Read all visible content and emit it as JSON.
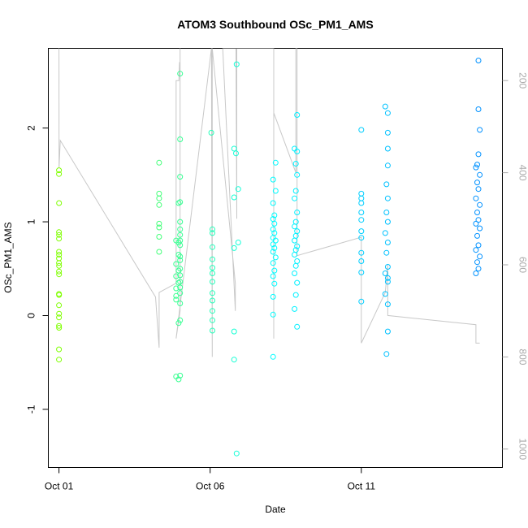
{
  "chart_data": {
    "type": "scatter",
    "title": "ATOM3 Southbound OSc_PM1_AMS",
    "xlabel": "Date",
    "ylabel": "OSc_PM1_AMS",
    "xlim": [
      "2016-09-30T15:33",
      "2016-10-15T16:00"
    ],
    "ylim": [
      -1.62,
      2.85
    ],
    "x_ticks": [
      {
        "date": "2016-10-01",
        "label": "Oct 01"
      },
      {
        "date": "2016-10-06",
        "label": "Oct 06"
      },
      {
        "date": "2016-10-11",
        "label": "Oct 11"
      }
    ],
    "y_ticks": [
      -1,
      0,
      1,
      2
    ],
    "right_axis": {
      "label": "",
      "ticks": [
        200,
        400,
        600,
        800,
        1000
      ],
      "lim": [
        130,
        1040
      ],
      "reversed": true,
      "color": "#aaaaaa"
    },
    "marker": "open-circle",
    "color_map": [
      "#7fff00",
      "#00ffff",
      "#0090ff"
    ],
    "secondary_line_color": "#c8c8c8",
    "grid": false,
    "legend": "none",
    "points": [
      {
        "x": "2016-10-01T00:00",
        "y": 1.55
      },
      {
        "x": "2016-10-01T00:00",
        "y": 1.51
      },
      {
        "x": "2016-10-01T00:05",
        "y": 1.2
      },
      {
        "x": "2016-10-01T00:00",
        "y": 0.89
      },
      {
        "x": "2016-10-01T00:05",
        "y": 0.86
      },
      {
        "x": "2016-10-01T00:00",
        "y": 0.82
      },
      {
        "x": "2016-10-01T00:00",
        "y": 0.68
      },
      {
        "x": "2016-10-01T00:05",
        "y": 0.65
      },
      {
        "x": "2016-10-01T00:00",
        "y": 0.61
      },
      {
        "x": "2016-10-01T00:00",
        "y": 0.56
      },
      {
        "x": "2016-10-01T00:05",
        "y": 0.53
      },
      {
        "x": "2016-10-01T00:00",
        "y": 0.47
      },
      {
        "x": "2016-10-01T00:05",
        "y": 0.44
      },
      {
        "x": "2016-10-01T00:00",
        "y": 0.23
      },
      {
        "x": "2016-10-01T00:05",
        "y": 0.22
      },
      {
        "x": "2016-10-01T00:00",
        "y": 0.11
      },
      {
        "x": "2016-10-01T00:05",
        "y": 0.02
      },
      {
        "x": "2016-10-01T00:00",
        "y": -0.02
      },
      {
        "x": "2016-10-01T00:00",
        "y": -0.11
      },
      {
        "x": "2016-10-01T00:05",
        "y": -0.13
      },
      {
        "x": "2016-10-01T00:00",
        "y": -0.36
      },
      {
        "x": "2016-10-01T00:00",
        "y": -0.47
      },
      {
        "x": "2016-10-04T07:30",
        "y": 1.63
      },
      {
        "x": "2016-10-04T07:30",
        "y": 1.3
      },
      {
        "x": "2016-10-04T07:30",
        "y": 1.25
      },
      {
        "x": "2016-10-04T07:30",
        "y": 1.18
      },
      {
        "x": "2016-10-04T07:30",
        "y": 0.98
      },
      {
        "x": "2016-10-04T07:30",
        "y": 0.94
      },
      {
        "x": "2016-10-04T07:30",
        "y": 0.84
      },
      {
        "x": "2016-10-04T07:30",
        "y": 0.68
      },
      {
        "x": "2016-10-04T21:00",
        "y": 0.8
      },
      {
        "x": "2016-10-04T21:00",
        "y": 0.55
      },
      {
        "x": "2016-10-04T21:00",
        "y": 0.42
      },
      {
        "x": "2016-10-04T21:00",
        "y": 0.29
      },
      {
        "x": "2016-10-04T21:00",
        "y": 0.21
      },
      {
        "x": "2016-10-04T21:00",
        "y": 0.17
      },
      {
        "x": "2016-10-04T21:00",
        "y": -0.65
      },
      {
        "x": "2016-10-05T00:10",
        "y": 2.58
      },
      {
        "x": "2016-10-05T00:10",
        "y": 1.88
      },
      {
        "x": "2016-10-05T00:10",
        "y": 1.48
      },
      {
        "x": "2016-10-05T00:10",
        "y": 1.21
      },
      {
        "x": "2016-10-05T00:10",
        "y": 1.0
      },
      {
        "x": "2016-10-05T00:10",
        "y": 0.92
      },
      {
        "x": "2016-10-05T00:10",
        "y": 0.86
      },
      {
        "x": "2016-10-05T00:10",
        "y": 0.8
      },
      {
        "x": "2016-10-05T00:10",
        "y": 0.75
      },
      {
        "x": "2016-10-05T00:10",
        "y": 0.63
      },
      {
        "x": "2016-10-05T00:10",
        "y": 0.59
      },
      {
        "x": "2016-10-05T00:10",
        "y": 0.5
      },
      {
        "x": "2016-10-05T00:10",
        "y": 0.43
      },
      {
        "x": "2016-10-05T00:10",
        "y": 0.36
      },
      {
        "x": "2016-10-05T00:10",
        "y": 0.3
      },
      {
        "x": "2016-10-05T00:10",
        "y": 0.24
      },
      {
        "x": "2016-10-05T00:10",
        "y": 0.13
      },
      {
        "x": "2016-10-05T00:10",
        "y": -0.05
      },
      {
        "x": "2016-10-05T00:10",
        "y": -0.64
      },
      {
        "x": "2016-10-04T23:00",
        "y": 1.2
      },
      {
        "x": "2016-10-04T23:00",
        "y": 0.78
      },
      {
        "x": "2016-10-04T23:00",
        "y": 0.65
      },
      {
        "x": "2016-10-04T23:00",
        "y": 0.48
      },
      {
        "x": "2016-10-04T23:00",
        "y": 0.35
      },
      {
        "x": "2016-10-04T23:00",
        "y": -0.68
      },
      {
        "x": "2016-10-04T23:00",
        "y": -0.08
      },
      {
        "x": "2016-10-06T00:55",
        "y": 1.95
      },
      {
        "x": "2016-10-06T01:50",
        "y": 0.92
      },
      {
        "x": "2016-10-06T01:50",
        "y": 0.88
      },
      {
        "x": "2016-10-06T01:50",
        "y": 0.73
      },
      {
        "x": "2016-10-06T01:50",
        "y": 0.6
      },
      {
        "x": "2016-10-06T01:50",
        "y": 0.51
      },
      {
        "x": "2016-10-06T01:50",
        "y": 0.45
      },
      {
        "x": "2016-10-06T01:50",
        "y": 0.36
      },
      {
        "x": "2016-10-06T01:50",
        "y": 0.24
      },
      {
        "x": "2016-10-06T01:50",
        "y": 0.16
      },
      {
        "x": "2016-10-06T01:50",
        "y": 0.05
      },
      {
        "x": "2016-10-06T01:50",
        "y": -0.05
      },
      {
        "x": "2016-10-06T01:50",
        "y": -0.16
      },
      {
        "x": "2016-10-06T21:00",
        "y": 2.68
      },
      {
        "x": "2016-10-06T19:00",
        "y": 1.78
      },
      {
        "x": "2016-10-06T20:30",
        "y": 1.73
      },
      {
        "x": "2016-10-06T22:20",
        "y": 1.35
      },
      {
        "x": "2016-10-06T19:00",
        "y": 1.26
      },
      {
        "x": "2016-10-06T22:20",
        "y": 0.78
      },
      {
        "x": "2016-10-06T19:00",
        "y": 0.72
      },
      {
        "x": "2016-10-06T19:00",
        "y": -0.17
      },
      {
        "x": "2016-10-06T19:00",
        "y": -0.47
      },
      {
        "x": "2016-10-06T21:00",
        "y": -1.47
      },
      {
        "x": "2016-10-08T04:00",
        "y": 1.63
      },
      {
        "x": "2016-10-08T02:00",
        "y": 1.45
      },
      {
        "x": "2016-10-08T04:00",
        "y": 1.33
      },
      {
        "x": "2016-10-08T02:00",
        "y": 1.2
      },
      {
        "x": "2016-10-08T03:00",
        "y": 1.07
      },
      {
        "x": "2016-10-08T02:00",
        "y": 1.03
      },
      {
        "x": "2016-10-08T03:00",
        "y": 0.98
      },
      {
        "x": "2016-10-08T02:00",
        "y": 0.92
      },
      {
        "x": "2016-10-08T03:00",
        "y": 0.88
      },
      {
        "x": "2016-10-08T02:00",
        "y": 0.83
      },
      {
        "x": "2016-10-08T04:00",
        "y": 0.8
      },
      {
        "x": "2016-10-08T02:00",
        "y": 0.76
      },
      {
        "x": "2016-10-08T03:00",
        "y": 0.72
      },
      {
        "x": "2016-10-08T02:00",
        "y": 0.68
      },
      {
        "x": "2016-10-08T04:00",
        "y": 0.62
      },
      {
        "x": "2016-10-08T02:00",
        "y": 0.56
      },
      {
        "x": "2016-10-08T03:00",
        "y": 0.48
      },
      {
        "x": "2016-10-08T02:00",
        "y": 0.42
      },
      {
        "x": "2016-10-08T03:00",
        "y": 0.34
      },
      {
        "x": "2016-10-08T02:00",
        "y": 0.2
      },
      {
        "x": "2016-10-08T02:00",
        "y": 0.01
      },
      {
        "x": "2016-10-08T02:00",
        "y": -0.44
      },
      {
        "x": "2016-10-08T21:00",
        "y": 2.14
      },
      {
        "x": "2016-10-08T19:00",
        "y": 1.78
      },
      {
        "x": "2016-10-08T21:00",
        "y": 1.75
      },
      {
        "x": "2016-10-08T20:00",
        "y": 1.62
      },
      {
        "x": "2016-10-08T21:00",
        "y": 1.5
      },
      {
        "x": "2016-10-08T20:00",
        "y": 1.33
      },
      {
        "x": "2016-10-08T19:00",
        "y": 1.25
      },
      {
        "x": "2016-10-08T21:00",
        "y": 1.1
      },
      {
        "x": "2016-10-08T20:00",
        "y": 1.0
      },
      {
        "x": "2016-10-08T19:00",
        "y": 0.95
      },
      {
        "x": "2016-10-08T21:00",
        "y": 0.9
      },
      {
        "x": "2016-10-08T20:00",
        "y": 0.85
      },
      {
        "x": "2016-10-08T19:00",
        "y": 0.8
      },
      {
        "x": "2016-10-08T21:00",
        "y": 0.74
      },
      {
        "x": "2016-10-08T20:00",
        "y": 0.7
      },
      {
        "x": "2016-10-08T19:00",
        "y": 0.65
      },
      {
        "x": "2016-10-08T21:00",
        "y": 0.58
      },
      {
        "x": "2016-10-08T20:00",
        "y": 0.53
      },
      {
        "x": "2016-10-08T19:00",
        "y": 0.45
      },
      {
        "x": "2016-10-08T21:00",
        "y": 0.35
      },
      {
        "x": "2016-10-08T20:00",
        "y": 0.22
      },
      {
        "x": "2016-10-08T19:00",
        "y": 0.07
      },
      {
        "x": "2016-10-08T21:00",
        "y": -0.12
      },
      {
        "x": "2016-10-11T00:00",
        "y": 1.98
      },
      {
        "x": "2016-10-11T00:00",
        "y": 1.3
      },
      {
        "x": "2016-10-11T00:00",
        "y": 1.25
      },
      {
        "x": "2016-10-11T00:00",
        "y": 1.2
      },
      {
        "x": "2016-10-11T00:00",
        "y": 1.1
      },
      {
        "x": "2016-10-11T00:00",
        "y": 1.02
      },
      {
        "x": "2016-10-11T00:00",
        "y": 0.9
      },
      {
        "x": "2016-10-11T00:00",
        "y": 0.83
      },
      {
        "x": "2016-10-11T00:00",
        "y": 0.67
      },
      {
        "x": "2016-10-11T00:00",
        "y": 0.58
      },
      {
        "x": "2016-10-11T00:00",
        "y": 0.46
      },
      {
        "x": "2016-10-11T00:00",
        "y": 0.15
      },
      {
        "x": "2016-10-11T19:00",
        "y": 2.23
      },
      {
        "x": "2016-10-11T21:00",
        "y": 2.16
      },
      {
        "x": "2016-10-11T21:00",
        "y": 1.95
      },
      {
        "x": "2016-10-11T21:00",
        "y": 1.78
      },
      {
        "x": "2016-10-11T21:00",
        "y": 1.6
      },
      {
        "x": "2016-10-11T20:00",
        "y": 1.4
      },
      {
        "x": "2016-10-11T21:00",
        "y": 1.25
      },
      {
        "x": "2016-10-11T20:00",
        "y": 1.1
      },
      {
        "x": "2016-10-11T21:00",
        "y": 1.0
      },
      {
        "x": "2016-10-11T19:00",
        "y": 0.88
      },
      {
        "x": "2016-10-11T21:00",
        "y": 0.78
      },
      {
        "x": "2016-10-11T20:00",
        "y": 0.67
      },
      {
        "x": "2016-10-11T21:00",
        "y": 0.52
      },
      {
        "x": "2016-10-11T19:00",
        "y": 0.45
      },
      {
        "x": "2016-10-11T21:00",
        "y": 0.4
      },
      {
        "x": "2016-10-11T21:00",
        "y": 0.36
      },
      {
        "x": "2016-10-11T19:00",
        "y": 0.23
      },
      {
        "x": "2016-10-11T21:00",
        "y": 0.12
      },
      {
        "x": "2016-10-11T21:00",
        "y": -0.17
      },
      {
        "x": "2016-10-11T20:00",
        "y": -0.41
      },
      {
        "x": "2016-10-14T21:00",
        "y": 2.72
      },
      {
        "x": "2016-10-14T21:00",
        "y": 2.2
      },
      {
        "x": "2016-10-14T22:00",
        "y": 1.98
      },
      {
        "x": "2016-10-14T21:00",
        "y": 1.72
      },
      {
        "x": "2016-10-14T20:00",
        "y": 1.61
      },
      {
        "x": "2016-10-14T19:00",
        "y": 1.58
      },
      {
        "x": "2016-10-14T22:00",
        "y": 1.5
      },
      {
        "x": "2016-10-14T20:00",
        "y": 1.42
      },
      {
        "x": "2016-10-14T21:00",
        "y": 1.35
      },
      {
        "x": "2016-10-14T19:00",
        "y": 1.25
      },
      {
        "x": "2016-10-14T22:00",
        "y": 1.18
      },
      {
        "x": "2016-10-14T20:00",
        "y": 1.1
      },
      {
        "x": "2016-10-14T21:00",
        "y": 1.02
      },
      {
        "x": "2016-10-14T19:00",
        "y": 0.98
      },
      {
        "x": "2016-10-14T22:00",
        "y": 0.93
      },
      {
        "x": "2016-10-14T20:00",
        "y": 0.85
      },
      {
        "x": "2016-10-14T21:00",
        "y": 0.75
      },
      {
        "x": "2016-10-14T19:00",
        "y": 0.7
      },
      {
        "x": "2016-10-14T22:00",
        "y": 0.63
      },
      {
        "x": "2016-10-14T20:00",
        "y": 0.57
      },
      {
        "x": "2016-10-14T21:00",
        "y": 0.5
      },
      {
        "x": "2016-10-14T19:00",
        "y": 0.45
      }
    ],
    "secondary_line": [
      {
        "x": "2016-10-01T00:00",
        "y": 130
      },
      {
        "x": "2016-10-01T00:04",
        "y": 390
      },
      {
        "x": "2016-10-01T01:00",
        "y": 330
      },
      {
        "x": "2016-10-04T04:40",
        "y": 670
      },
      {
        "x": "2016-10-04T07:30",
        "y": 780
      },
      {
        "x": "2016-10-04T07:30",
        "y": 660
      },
      {
        "x": "2016-10-04T21:00",
        "y": 640
      },
      {
        "x": "2016-10-04T21:00",
        "y": 200
      },
      {
        "x": "2016-10-04T23:10",
        "y": 200
      },
      {
        "x": "2016-10-04T23:40",
        "y": 160
      },
      {
        "x": "2016-10-05T00:10",
        "y": 200
      },
      {
        "x": "2016-10-05T00:10",
        "y": 130
      },
      {
        "x": "2016-10-05T00:10",
        "y": 700
      },
      {
        "x": "2016-10-04T21:00",
        "y": 760
      },
      {
        "x": "2016-10-06T01:00",
        "y": 130
      },
      {
        "x": "2016-10-06T01:40",
        "y": 800
      },
      {
        "x": "2016-10-06T01:40",
        "y": 130
      },
      {
        "x": "2016-10-06T20:00",
        "y": 640
      },
      {
        "x": "2016-10-06T20:00",
        "y": 700
      },
      {
        "x": "2016-10-06T10:00",
        "y": 130
      },
      {
        "x": "2016-10-06T20:30",
        "y": 130
      },
      {
        "x": "2016-10-06T21:10",
        "y": 500
      },
      {
        "x": "2016-10-06T21:10",
        "y": 130
      },
      {
        "x": "2016-10-08T02:30",
        "y": 130
      },
      {
        "x": "2016-10-08T02:30",
        "y": 760
      },
      {
        "x": "2016-10-08T02:30",
        "y": 270
      },
      {
        "x": "2016-10-08T20:00",
        "y": 400
      },
      {
        "x": "2016-10-08T20:00",
        "y": 130
      },
      {
        "x": "2016-10-08T21:00",
        "y": 130
      },
      {
        "x": "2016-10-08T21:00",
        "y": 580
      },
      {
        "x": "2016-10-11T00:00",
        "y": 540
      },
      {
        "x": "2016-10-11T00:00",
        "y": 770
      },
      {
        "x": "2016-10-11T19:00",
        "y": 660
      },
      {
        "x": "2016-10-11T21:00",
        "y": 600
      },
      {
        "x": "2016-10-11T21:00",
        "y": 710
      },
      {
        "x": "2016-10-14T19:00",
        "y": 730
      },
      {
        "x": "2016-10-14T19:00",
        "y": 770
      },
      {
        "x": "2016-10-14T22:00",
        "y": 770
      }
    ]
  }
}
